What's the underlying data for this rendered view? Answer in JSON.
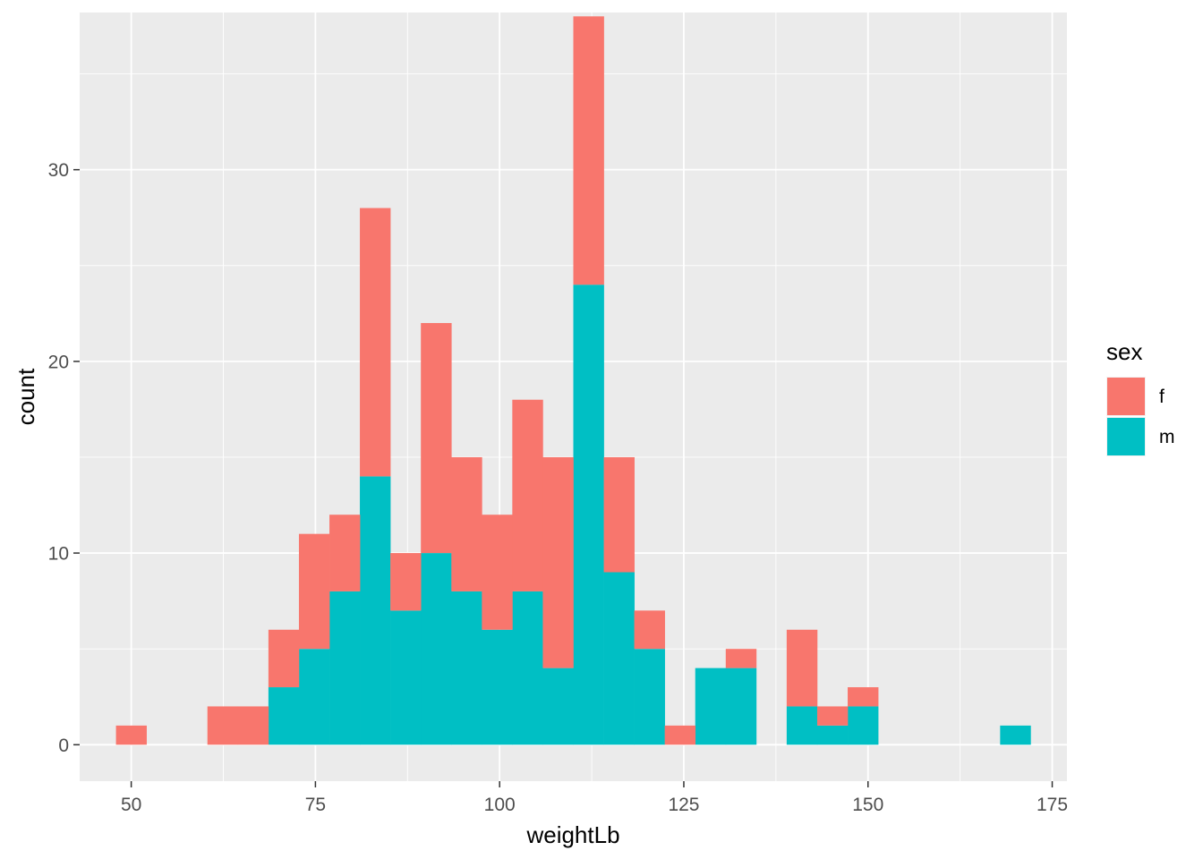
{
  "chart_data": {
    "type": "bar",
    "subtype": "stacked-histogram",
    "title": "",
    "xlabel": "weightLb",
    "ylabel": "count",
    "xlim": [
      43,
      177
    ],
    "ylim": [
      -1.9,
      38.2
    ],
    "x_ticks": [
      50,
      75,
      100,
      125,
      150,
      175
    ],
    "y_ticks": [
      0,
      10,
      20,
      30
    ],
    "x_tick_labels": [
      "50",
      "75",
      "100",
      "125",
      "150",
      "175"
    ],
    "y_tick_labels": [
      "0",
      "10",
      "20",
      "30"
    ],
    "grid": true,
    "legend_position": "right",
    "legend_title": "sex",
    "bin_width": 4.14,
    "bin_centers": [
      50.0,
      54.14,
      58.28,
      62.41,
      66.55,
      70.69,
      74.83,
      78.97,
      83.1,
      87.24,
      91.38,
      95.52,
      99.66,
      103.79,
      107.93,
      112.07,
      116.21,
      120.34,
      124.48,
      128.62,
      132.76,
      136.9,
      141.03,
      145.17,
      149.31,
      153.45,
      157.59,
      161.72,
      165.86,
      170.0
    ],
    "series": [
      {
        "name": "m",
        "color": "#00BFC4",
        "values": [
          0,
          0,
          0,
          0,
          0,
          3,
          5,
          8,
          14,
          7,
          10,
          8,
          6,
          8,
          4,
          24,
          9,
          5,
          0,
          4,
          4,
          0,
          2,
          1,
          2,
          0,
          0,
          0,
          0,
          1
        ]
      },
      {
        "name": "f",
        "color": "#F8766D",
        "values": [
          1,
          0,
          0,
          2,
          2,
          3,
          6,
          4,
          14,
          3,
          12,
          7,
          6,
          10,
          11,
          14,
          6,
          2,
          1,
          0,
          1,
          0,
          4,
          1,
          1,
          0,
          0,
          0,
          0,
          0
        ]
      }
    ]
  },
  "colors": {
    "panel_background": "#EBEBEB",
    "grid_major": "#FFFFFF",
    "tick_text": "#4D4D4D",
    "tick_mark": "#333333"
  }
}
